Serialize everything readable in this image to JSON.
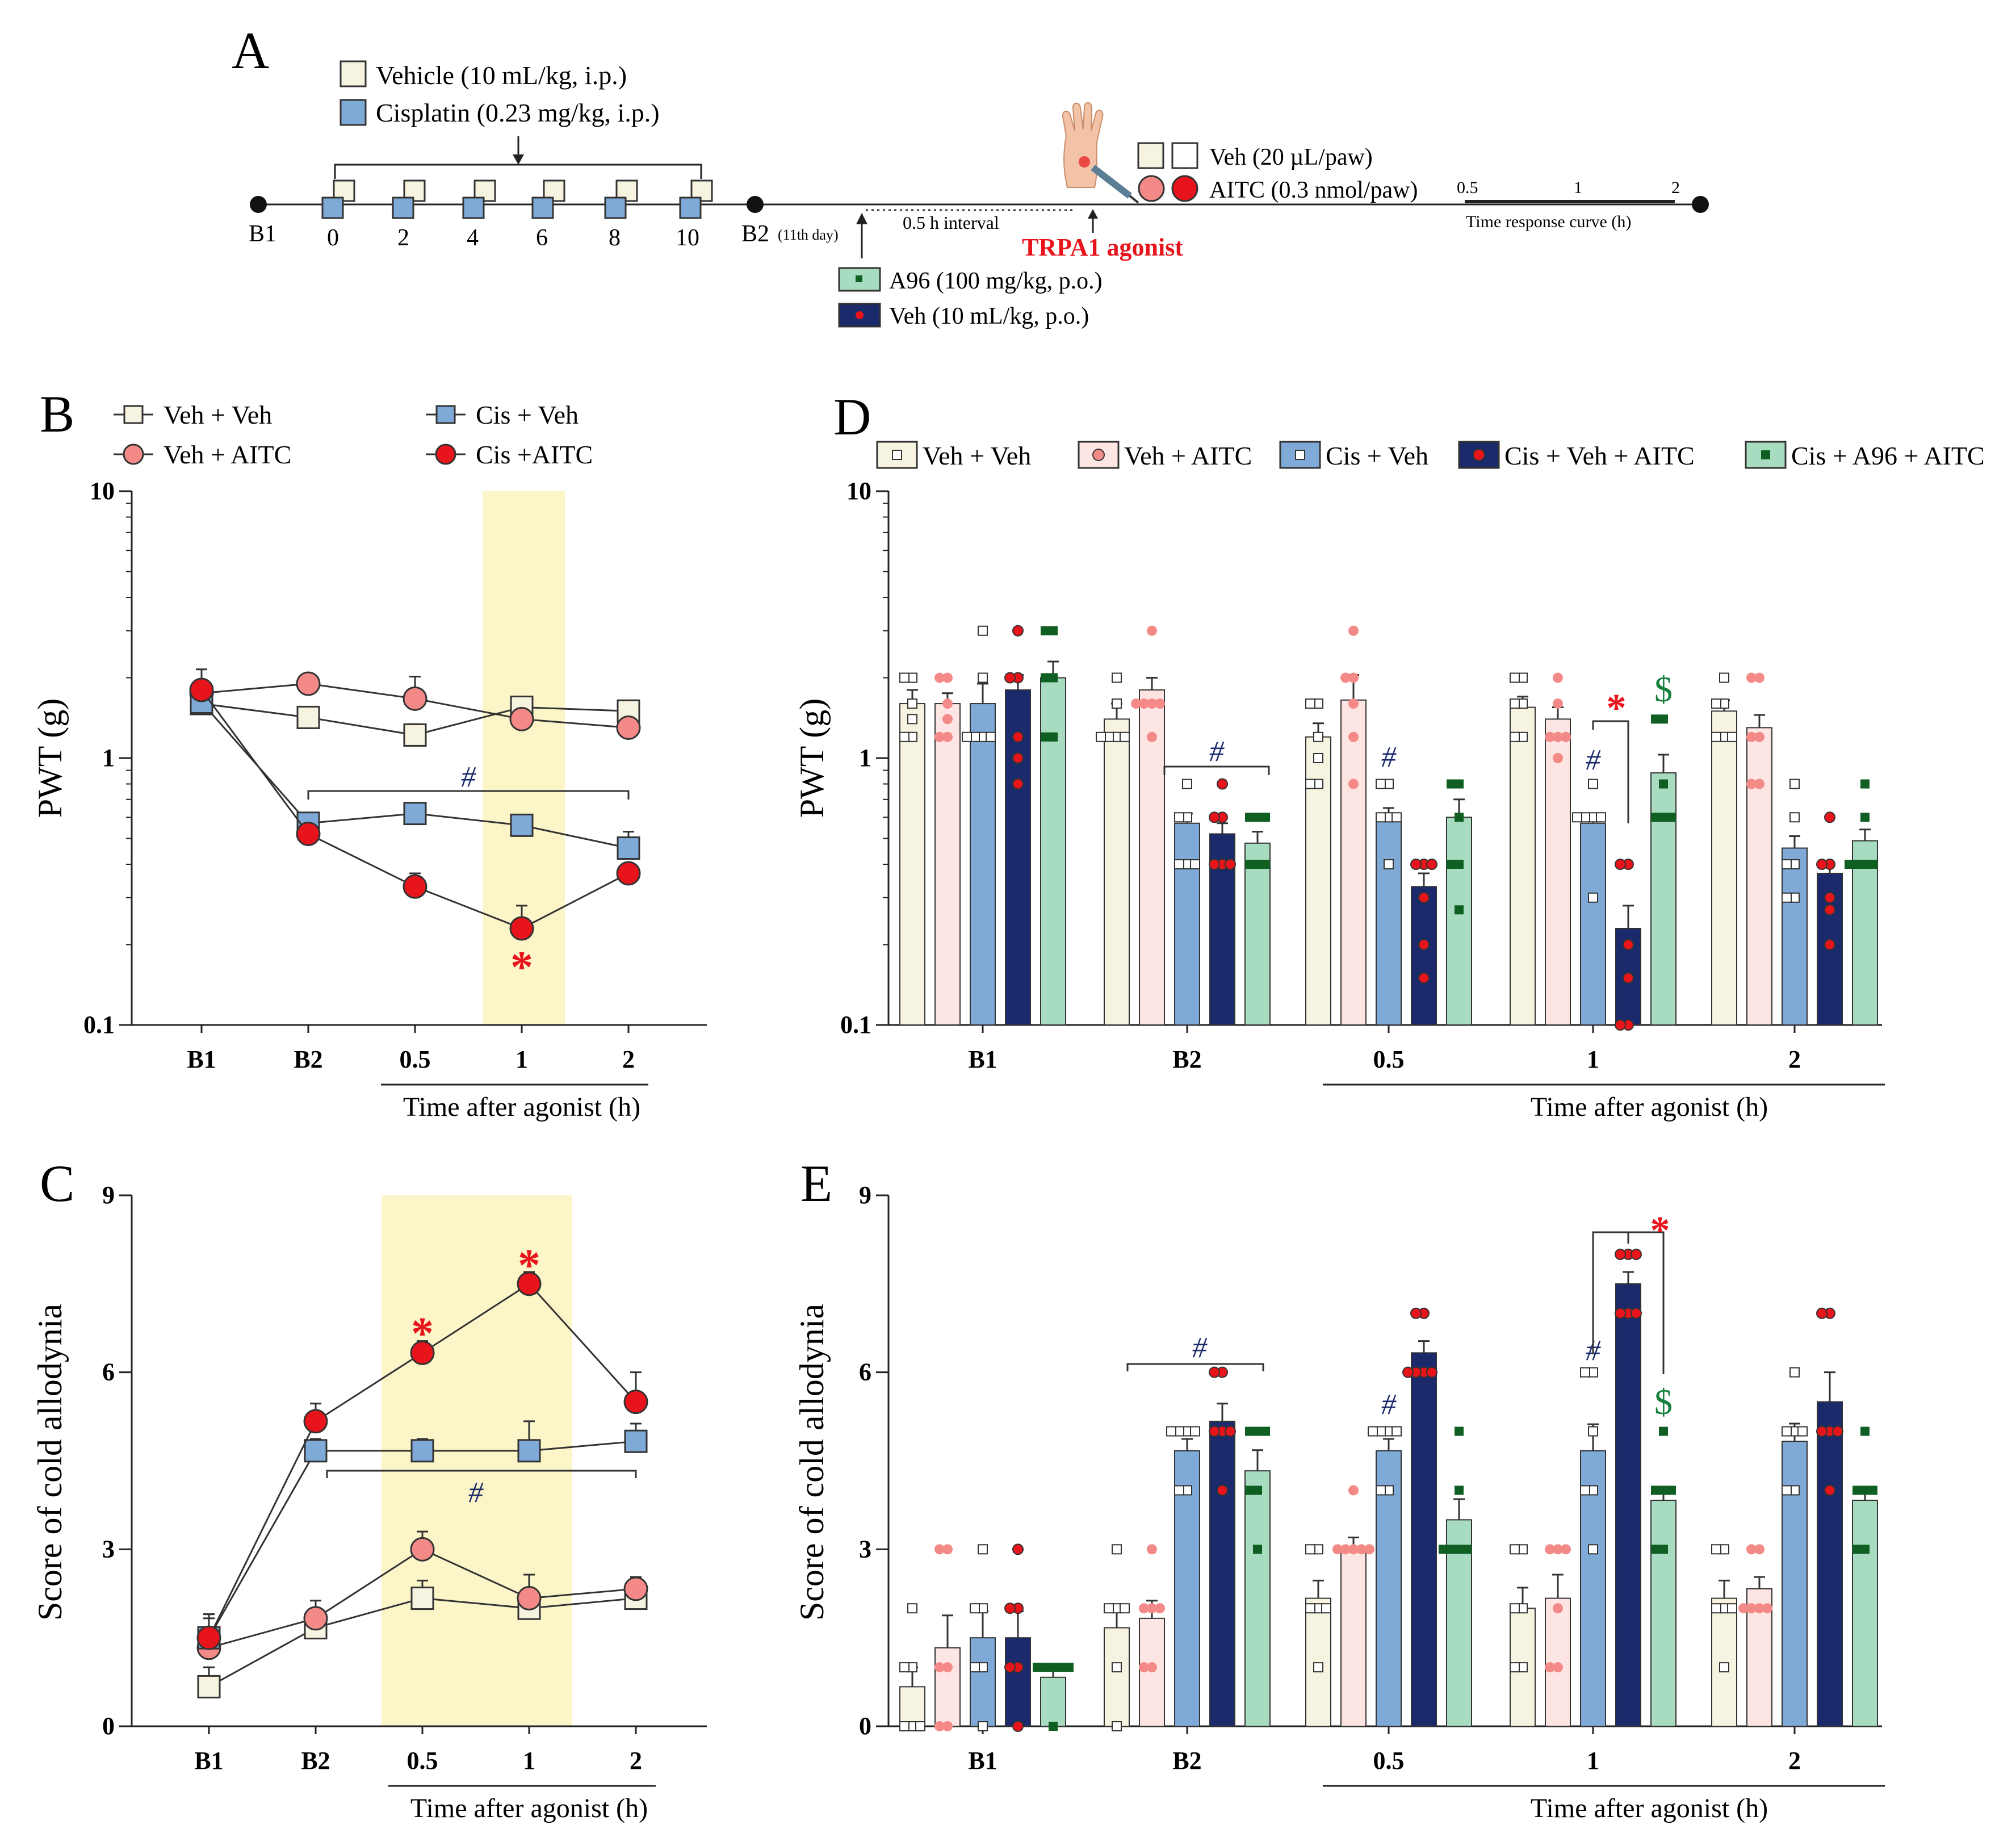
{
  "panel_labels": {
    "a": "A",
    "b": "B",
    "c": "C",
    "d": "D",
    "e": "E"
  },
  "colors": {
    "veh_veh": "#f6f3e1",
    "veh_aitc": "#fde5e3",
    "veh_aitc_dot": "#f48a88",
    "cis_veh": "#7fa9d6",
    "cis_veh_aitc": "#1b2a6b",
    "cis_a96_aitc": "#a8dcc1",
    "a96_dot": "#0f5e22",
    "red": "#e8141b",
    "hash": "#1b2a6b",
    "dollar": "#15803d",
    "highlight": "#fbf5c8"
  },
  "protocol": {
    "vehicle_legend": "Vehicle (10 mL/kg, i.p.)",
    "cisplatin_legend": "Cisplatin (0.23 mg/kg, i.p.)",
    "b1": "B1",
    "days": [
      "0",
      "2",
      "4",
      "6",
      "8",
      "10"
    ],
    "b2": "B2",
    "b2_note": "(11th day)",
    "interval": "0.5 h interval",
    "agonist": "TRPA1 agonist",
    "a96_legend": "A96 (100 mg/kg, p.o.)",
    "veh_po_legend": "Veh (10 mL/kg, p.o.)",
    "veh_paw_legend": "Veh (20 µL/paw)",
    "aitc_paw_legend": "AITC (0.3 nmol/paw)",
    "time_ticks": [
      "0.5",
      "1",
      "2"
    ],
    "time_curve_label": "Time response curve (h)"
  },
  "chart_data": [
    {
      "id": "B",
      "type": "line",
      "yscale": "log",
      "ylim": [
        0.1,
        10
      ],
      "ylabel": "PWT (g)",
      "xlabel": "Time after agonist (h)",
      "categories": [
        "B1",
        "B2",
        "0.5",
        "1",
        "2"
      ],
      "yticks": [
        "0.1",
        "1",
        "10"
      ],
      "legend": [
        "Veh + Veh",
        "Veh + AITC",
        "Cis + Veh",
        "Cis +AITC"
      ],
      "series": [
        {
          "name": "Veh + Veh",
          "values": [
            1.6,
            1.42,
            1.22,
            1.55,
            1.5
          ],
          "err": [
            0.06,
            0.1,
            0.12,
            0.15,
            0.1
          ]
        },
        {
          "name": "Veh + AITC",
          "values": [
            1.75,
            1.9,
            1.67,
            1.4,
            1.3
          ],
          "err": [
            0.1,
            0.15,
            0.35,
            0.1,
            0.08
          ]
        },
        {
          "name": "Cis + Veh",
          "values": [
            1.62,
            0.57,
            0.62,
            0.56,
            0.46
          ],
          "err": [
            0.1,
            0.05,
            0.05,
            0.05,
            0.07
          ]
        },
        {
          "name": "Cis +AITC",
          "values": [
            1.8,
            0.52,
            0.33,
            0.23,
            0.37
          ],
          "err": [
            0.35,
            0.04,
            0.04,
            0.05,
            0.03
          ]
        }
      ],
      "annotations": {
        "hash": "#",
        "star": "*"
      }
    },
    {
      "id": "C",
      "type": "line",
      "ylim": [
        0,
        9
      ],
      "ylabel": "Score of cold allodynia",
      "xlabel": "Time after agonist (h)",
      "categories": [
        "B1",
        "B2",
        "0.5",
        "1",
        "2"
      ],
      "yticks": [
        "0",
        "3",
        "6",
        "9"
      ],
      "series": [
        {
          "name": "Veh + Veh",
          "values": [
            0.67,
            1.67,
            2.17,
            2.0,
            2.17
          ],
          "err": [
            0.33,
            0.3,
            0.3,
            0.3,
            0.3
          ]
        },
        {
          "name": "Veh + AITC",
          "values": [
            1.33,
            1.83,
            3.0,
            2.17,
            2.33
          ],
          "err": [
            0.5,
            0.3,
            0.3,
            0.4,
            0.2
          ]
        },
        {
          "name": "Cis + Veh",
          "values": [
            1.5,
            4.67,
            4.67,
            4.67,
            4.83
          ],
          "err": [
            0.4,
            0.2,
            0.2,
            0.5,
            0.3
          ]
        },
        {
          "name": "Cis +AITC",
          "values": [
            1.5,
            5.17,
            6.33,
            7.5,
            5.5
          ],
          "err": [
            0.4,
            0.3,
            0.2,
            0.2,
            0.5
          ]
        }
      ],
      "annotations": {
        "hash": "#",
        "star": "*"
      }
    },
    {
      "id": "D",
      "type": "bar",
      "yscale": "log",
      "ylim": [
        0.1,
        10
      ],
      "ylabel": "PWT (g)",
      "xlabel": "Time after agonist (h)",
      "categories": [
        "B1",
        "B2",
        "0.5",
        "1",
        "2"
      ],
      "yticks": [
        "0.1",
        "1",
        "10"
      ],
      "legend": [
        "Veh + Veh",
        "Veh + AITC",
        "Cis + Veh",
        "Cis + Veh + AITC",
        "Cis + A96 + AITC"
      ],
      "series": [
        {
          "name": "Veh + Veh",
          "values": [
            1.6,
            1.4,
            1.2,
            1.55,
            1.5
          ],
          "err": [
            0.2,
            0.2,
            0.15,
            0.15,
            0.15
          ]
        },
        {
          "name": "Veh + AITC",
          "values": [
            1.6,
            1.8,
            1.65,
            1.4,
            1.3
          ],
          "err": [
            0.15,
            0.2,
            0.4,
            0.15,
            0.15
          ]
        },
        {
          "name": "Cis + Veh",
          "values": [
            1.6,
            0.57,
            0.6,
            0.57,
            0.46
          ],
          "err": [
            0.3,
            0.05,
            0.05,
            0.05,
            0.05
          ]
        },
        {
          "name": "Cis + Veh + AITC",
          "values": [
            1.8,
            0.52,
            0.33,
            0.23,
            0.37
          ],
          "err": [
            0.25,
            0.05,
            0.04,
            0.05,
            0.03
          ]
        },
        {
          "name": "Cis + A96 + AITC",
          "values": [
            2.0,
            0.48,
            0.6,
            0.88,
            0.49
          ],
          "err": [
            0.3,
            0.05,
            0.1,
            0.15,
            0.05
          ]
        }
      ],
      "points": [
        [
          [
            2.0,
            2.0,
            1.6,
            1.4,
            1.2,
            1.2
          ],
          [
            2.0,
            2.0,
            1.6,
            1.4,
            1.2,
            1.2
          ],
          [
            3.0,
            2.0,
            1.2,
            1.2,
            1.2,
            1.2
          ],
          [
            3.0,
            2.0,
            2.0,
            1.2,
            1.0,
            0.8
          ],
          [
            3.0,
            3.0,
            2.0,
            2.0,
            1.2,
            1.2
          ]
        ],
        [
          [
            2.0,
            1.6,
            1.2,
            1.2,
            1.2,
            1.2
          ],
          [
            3.0,
            1.6,
            1.6,
            1.6,
            1.6,
            1.2
          ],
          [
            0.8,
            0.6,
            0.6,
            0.4,
            0.4,
            0.4
          ],
          [
            0.8,
            0.6,
            0.6,
            0.4,
            0.4,
            0.4
          ],
          [
            0.6,
            0.6,
            0.6,
            0.4,
            0.4,
            0.4
          ]
        ],
        [
          [
            1.6,
            1.6,
            1.2,
            1.0,
            0.8,
            0.8
          ],
          [
            3.0,
            2.0,
            2.0,
            1.6,
            1.2,
            0.8
          ],
          [
            0.8,
            0.8,
            0.6,
            0.6,
            0.6,
            0.4
          ],
          [
            0.4,
            0.4,
            0.4,
            0.3,
            0.2,
            0.15
          ],
          [
            0.8,
            0.8,
            0.6,
            0.4,
            0.4,
            0.27
          ]
        ],
        [
          [
            2.0,
            2.0,
            1.6,
            1.6,
            1.2,
            1.2
          ],
          [
            2.0,
            1.6,
            1.2,
            1.2,
            1.2,
            1.0
          ],
          [
            0.8,
            0.6,
            0.6,
            0.6,
            0.6,
            0.3
          ],
          [
            0.4,
            0.4,
            0.2,
            0.15,
            0.1,
            0.1
          ],
          [
            1.4,
            1.4,
            0.8,
            0.6,
            0.6,
            0.6
          ]
        ],
        [
          [
            2.0,
            1.6,
            1.6,
            1.2,
            1.2,
            1.2
          ],
          [
            2.0,
            2.0,
            1.2,
            1.2,
            0.8,
            0.8
          ],
          [
            0.8,
            0.6,
            0.4,
            0.4,
            0.3,
            0.3
          ],
          [
            0.6,
            0.4,
            0.4,
            0.3,
            0.27,
            0.2
          ],
          [
            0.8,
            0.6,
            0.4,
            0.4,
            0.4,
            0.4
          ]
        ]
      ],
      "annotations": {
        "hash": "#",
        "star": "*",
        "dollar": "$"
      }
    },
    {
      "id": "E",
      "type": "bar",
      "ylim": [
        0,
        9
      ],
      "ylabel": "Score of cold allodynia",
      "xlabel": "Time after agonist (h)",
      "categories": [
        "B1",
        "B2",
        "0.5",
        "1",
        "2"
      ],
      "yticks": [
        "0",
        "3",
        "6",
        "9"
      ],
      "series": [
        {
          "name": "Veh + Veh",
          "values": [
            0.67,
            1.67,
            2.17,
            2.0,
            2.17
          ],
          "err": [
            0.33,
            0.4,
            0.3,
            0.35,
            0.3
          ]
        },
        {
          "name": "Veh + AITC",
          "values": [
            1.33,
            1.83,
            3.0,
            2.17,
            2.33
          ],
          "err": [
            0.55,
            0.3,
            0.2,
            0.4,
            0.2
          ]
        },
        {
          "name": "Cis + Veh",
          "values": [
            1.5,
            4.67,
            4.67,
            4.67,
            4.83
          ],
          "err": [
            0.45,
            0.2,
            0.2,
            0.45,
            0.3
          ]
        },
        {
          "name": "Cis + Veh + AITC",
          "values": [
            1.5,
            5.17,
            6.33,
            7.5,
            5.5
          ],
          "err": [
            0.45,
            0.3,
            0.2,
            0.2,
            0.5
          ]
        },
        {
          "name": "Cis + A96 + AITC",
          "values": [
            0.83,
            4.33,
            3.5,
            3.83,
            3.83
          ],
          "err": [
            0.17,
            0.35,
            0.35,
            0.2,
            0.2
          ]
        }
      ],
      "points": [
        [
          [
            2,
            1,
            1,
            0,
            0,
            0
          ],
          [
            3,
            3,
            1,
            1,
            0,
            0
          ],
          [
            3,
            2,
            2,
            1,
            1,
            0
          ],
          [
            3,
            2,
            2,
            1,
            1,
            0
          ],
          [
            1,
            1,
            1,
            1,
            1,
            0
          ]
        ],
        [
          [
            3,
            2,
            2,
            2,
            1,
            0
          ],
          [
            3,
            2,
            2,
            2,
            1,
            1
          ],
          [
            5,
            5,
            5,
            4,
            4,
            5
          ],
          [
            6,
            6,
            5,
            5,
            5,
            4
          ],
          [
            5,
            5,
            5,
            4,
            4,
            3
          ]
        ],
        [
          [
            3,
            3,
            2,
            2,
            1,
            2
          ],
          [
            4,
            3,
            3,
            3,
            3,
            3
          ],
          [
            5,
            5,
            5,
            4,
            4,
            5
          ],
          [
            7,
            7,
            6,
            6,
            6,
            6
          ],
          [
            5,
            4,
            3,
            3,
            3,
            3
          ]
        ],
        [
          [
            3,
            3,
            2,
            2,
            1,
            1
          ],
          [
            3,
            3,
            3,
            2,
            1,
            1
          ],
          [
            6,
            6,
            5,
            4,
            4,
            3
          ],
          [
            8,
            8,
            8,
            7,
            7,
            7
          ],
          [
            5,
            4,
            4,
            4,
            3,
            3
          ]
        ],
        [
          [
            3,
            3,
            2,
            2,
            2,
            1
          ],
          [
            3,
            3,
            2,
            2,
            2,
            2
          ],
          [
            6,
            5,
            5,
            4,
            4,
            5
          ],
          [
            7,
            7,
            5,
            5,
            5,
            4
          ],
          [
            5,
            4,
            4,
            4,
            3,
            3
          ]
        ]
      ],
      "annotations": {
        "hash": "#",
        "star": "*",
        "dollar": "$"
      }
    }
  ]
}
